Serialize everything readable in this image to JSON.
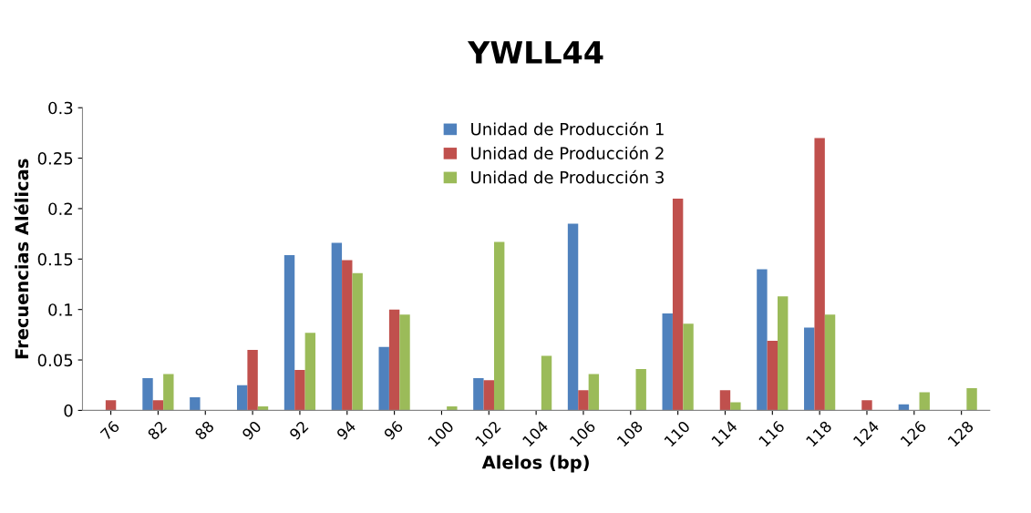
{
  "chart_data": {
    "type": "bar",
    "title": "YWLL44",
    "xlabel": "Alelos (bp)",
    "ylabel": "Frecuencias Alélicas",
    "categories": [
      "76",
      "82",
      "88",
      "90",
      "92",
      "94",
      "96",
      "100",
      "102",
      "104",
      "106",
      "108",
      "110",
      "114",
      "116",
      "118",
      "124",
      "126",
      "128"
    ],
    "series": [
      {
        "name": "Unidad de Producción 1",
        "color": "#4f81bd",
        "values": [
          null,
          0.032,
          0.013,
          0.025,
          0.154,
          0.166,
          0.063,
          null,
          0.032,
          null,
          0.185,
          null,
          0.096,
          null,
          0.14,
          0.082,
          null,
          0.006,
          null
        ]
      },
      {
        "name": "Unidad de Producción 2",
        "color": "#c0504d",
        "values": [
          0.01,
          0.01,
          null,
          0.06,
          0.04,
          0.149,
          0.1,
          null,
          0.03,
          null,
          0.02,
          null,
          0.21,
          0.02,
          0.069,
          0.27,
          0.01,
          null,
          null
        ]
      },
      {
        "name": "Unidad de Producción 3",
        "color": "#9bbb59",
        "values": [
          null,
          0.036,
          null,
          0.004,
          0.077,
          0.136,
          0.095,
          0.004,
          0.167,
          0.054,
          0.036,
          0.041,
          0.086,
          0.008,
          0.113,
          0.095,
          null,
          0.018,
          0.022
        ]
      }
    ],
    "ylim": [
      0,
      0.3
    ],
    "yticks": [
      {
        "value": 0,
        "label": "0"
      },
      0.05,
      0.1,
      0.15,
      0.2,
      0.25,
      0.3
    ],
    "grid": false,
    "legend": "top"
  }
}
